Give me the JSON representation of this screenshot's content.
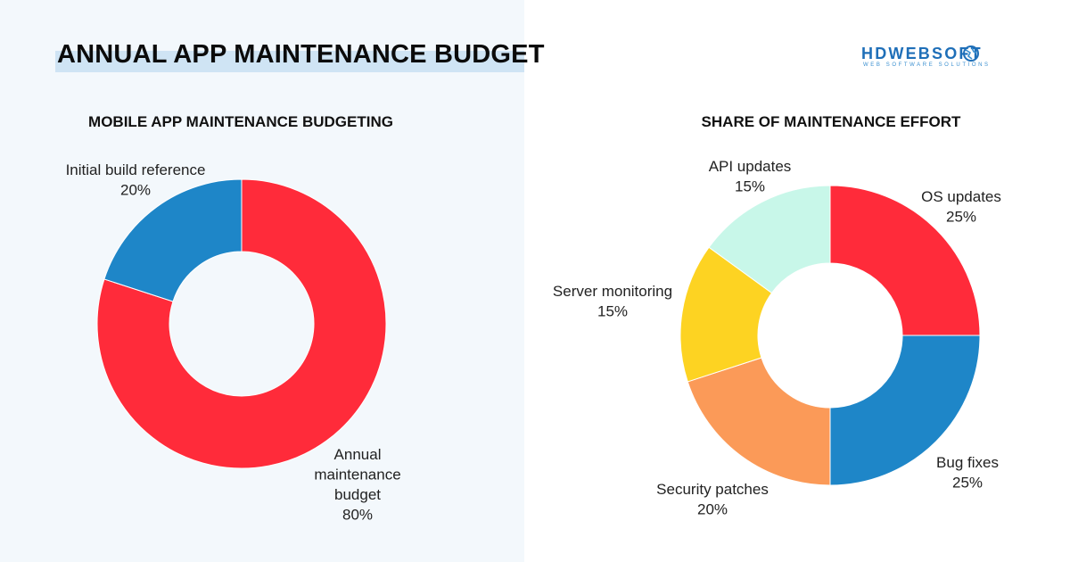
{
  "header": {
    "title": "ANNUAL APP MAINTENANCE BUDGET"
  },
  "logo": {
    "main_text": "HDWEBSOFT",
    "sub_text": "WEB SOFTWARE SOLUTIONS"
  },
  "chart_data": [
    {
      "type": "pie",
      "title": "MOBILE APP MAINTENANCE BUDGETING",
      "donut": true,
      "slices": [
        {
          "label": [
            "Annual",
            "maintenance",
            "budget"
          ],
          "value": 80,
          "display": "80%",
          "color": "#ff2b3a"
        },
        {
          "label": [
            "Initial build reference"
          ],
          "value": 20,
          "display": "20%",
          "color": "#1e86c8"
        }
      ]
    },
    {
      "type": "pie",
      "title": "SHARE OF MAINTENANCE EFFORT",
      "donut": true,
      "slices": [
        {
          "label": [
            "OS updates"
          ],
          "value": 25,
          "display": "25%",
          "color": "#ff2b3a"
        },
        {
          "label": [
            "Bug fixes"
          ],
          "value": 25,
          "display": "25%",
          "color": "#1e86c8"
        },
        {
          "label": [
            "Security patches"
          ],
          "value": 20,
          "display": "20%",
          "color": "#fb9a58"
        },
        {
          "label": [
            "Server monitoring"
          ],
          "value": 15,
          "display": "15%",
          "color": "#fdd322"
        },
        {
          "label": [
            "API updates"
          ],
          "value": 15,
          "display": "15%",
          "color": "#c8f7e9"
        }
      ]
    }
  ]
}
